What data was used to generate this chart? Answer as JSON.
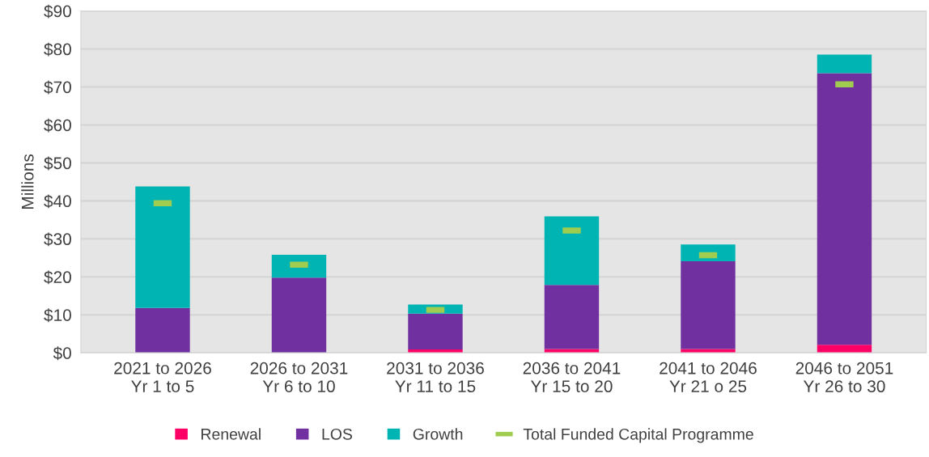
{
  "chart_data": {
    "type": "bar",
    "stacked": true,
    "ylabel": "Millions",
    "categories": [
      "2021 to 2026\nYr 1 to 5",
      "2026 to 2031\nYr 6 to 10",
      "2031 to 2036\nYr 11 to 15",
      "2036 to 2041\nYr 15 to 20",
      "2041 to 2046\nYr 21 o 25",
      "2046 to 2051\nYr 26 to 30"
    ],
    "series": [
      {
        "name": "Renewal",
        "color": "#ff0066",
        "values": [
          null,
          null,
          0.9,
          1.0,
          1.0,
          2.1
        ]
      },
      {
        "name": "LOS",
        "color": "#7030a0",
        "values": [
          11.8,
          19.8,
          9.4,
          16.9,
          23.1,
          71.5
        ]
      },
      {
        "name": "Growth",
        "color": "#00b4b4",
        "values": [
          32.0,
          6.0,
          2.4,
          18.0,
          4.4,
          4.9
        ]
      },
      {
        "name": "Total Funded Capital Programme",
        "type": "scatter",
        "color": "#a0cc50",
        "values": [
          39.4,
          23.2,
          11.3,
          32.2,
          25.7,
          70.7
        ]
      }
    ],
    "ylim": [
      0,
      90
    ],
    "yticks": [
      {
        "value": 0,
        "label": "$0"
      },
      {
        "value": 10,
        "label": "$10"
      },
      {
        "value": 20,
        "label": "$20"
      },
      {
        "value": 30,
        "label": "$30"
      },
      {
        "value": 40,
        "label": "$40"
      },
      {
        "value": 50,
        "label": "$50"
      },
      {
        "value": 60,
        "label": "$60"
      },
      {
        "value": 70,
        "label": "$70"
      },
      {
        "value": 80,
        "label": "$80"
      },
      {
        "value": 90,
        "label": "$90"
      }
    ],
    "grid": "y",
    "legend": "bottom"
  }
}
